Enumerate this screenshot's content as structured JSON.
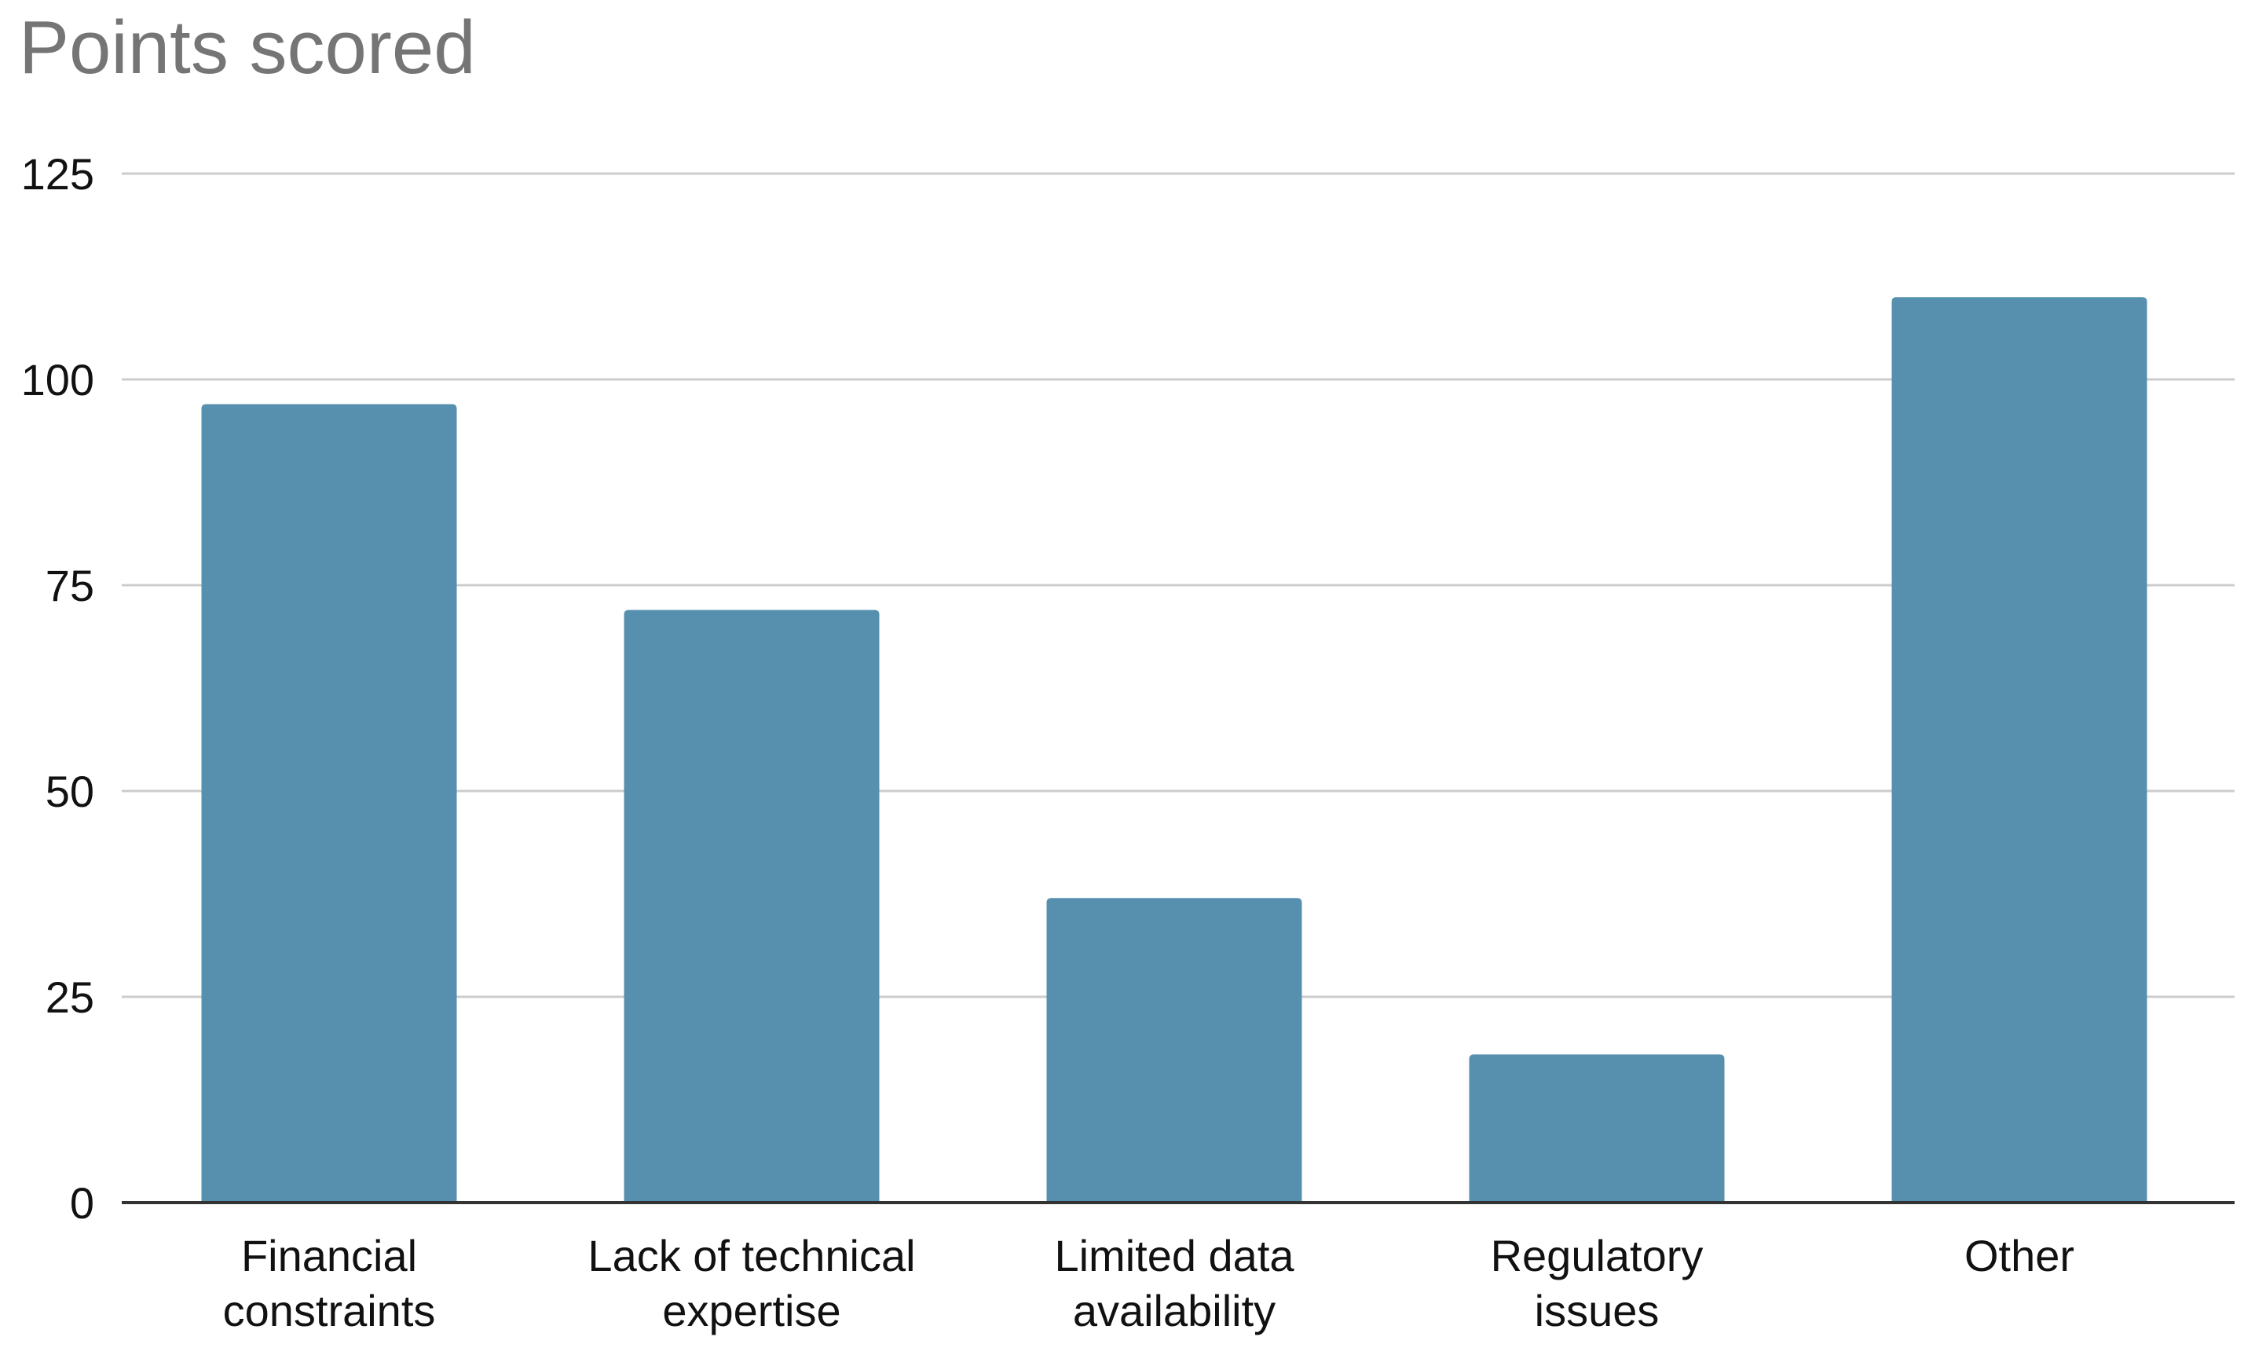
{
  "chart_data": {
    "type": "bar",
    "title": "Points scored",
    "xlabel": "",
    "ylabel": "",
    "categories": [
      [
        "Financial",
        "constraints"
      ],
      [
        "Lack of technical",
        "expertise"
      ],
      [
        "Limited data",
        "availability"
      ],
      [
        "Regulatory",
        "issues"
      ],
      [
        "Other"
      ]
    ],
    "series": [
      {
        "values": [
          97,
          72,
          37,
          18,
          110
        ]
      }
    ],
    "ylim": [
      0,
      125
    ],
    "yticks": [
      0,
      25,
      50,
      75,
      100,
      125
    ],
    "grid": true,
    "legend": "none",
    "colors": {
      "bar": "#5790AF",
      "grid": "#cccccc",
      "axis": "#333333"
    }
  }
}
